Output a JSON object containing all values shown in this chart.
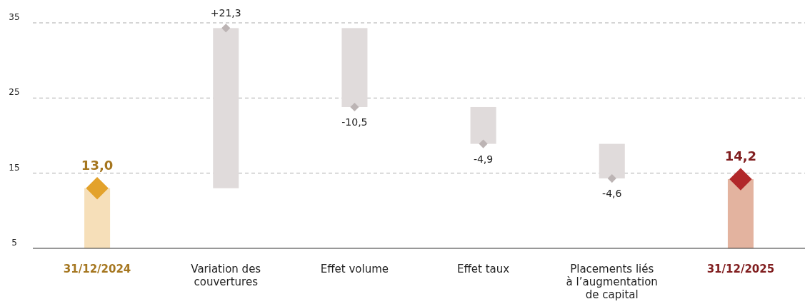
{
  "chart_data": {
    "type": "bar",
    "categories": [
      "31/12/2024",
      "Variation des couvertures",
      "Effet volume",
      "Effet taux",
      "Placements liés à l’augmentation de capital",
      "31/12/2025"
    ],
    "values": [
      13,
      21.3,
      -10.5,
      -4.9,
      -4.6,
      14.2
    ],
    "base": [
      null,
      13,
      34.3,
      23.8,
      18.9,
      null
    ],
    "colors": [
      "#f6dfb9",
      "#e0dbdb",
      "#e0dbdb",
      "#e0dbdb",
      "#e0dbdb",
      "#e3b39f"
    ],
    "value_labels": [
      "13,0",
      "+21,3",
      "-10,5",
      "-4,9",
      "-4,6",
      "14,2"
    ],
    "series": [
      {
        "type": "scatter",
        "values": [
          13,
          34.3,
          23.8,
          18.9,
          14.3,
          14.2
        ],
        "colors": [
          "#e3a22b",
          "#bcb4b4",
          "#bcb4b4",
          "#bcb4b4",
          "#bcb4b4",
          "#b1282a"
        ],
        "sizes": [
          1,
          0.15,
          0.15,
          0.15,
          0.15,
          1
        ]
      }
    ],
    "marker": "diamond",
    "ylim": [
      5,
      35
    ],
    "yticks": [
      5,
      15,
      25,
      35
    ],
    "grid": "y"
  }
}
